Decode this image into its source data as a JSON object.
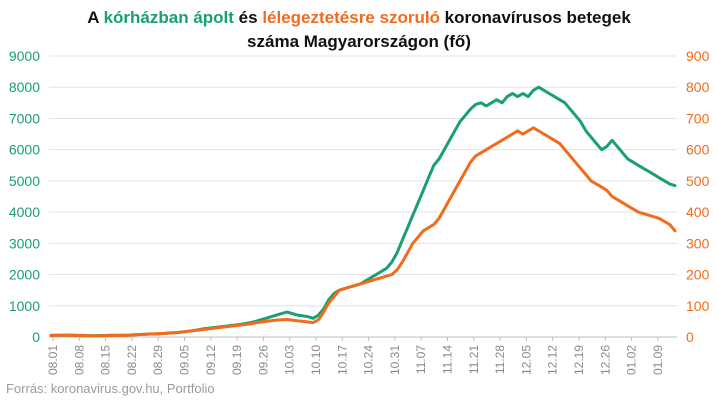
{
  "title": {
    "prefix": "A ",
    "hospitalized_term": "kórházban ápolt",
    "connector": " és ",
    "ventilated_term": "lélegeztetésre szoruló",
    "suffix": " koronavírusos betegek",
    "line2": "száma Magyarországon  (fő)"
  },
  "source": "Forrás: koronavirus.gov.hu, Portfolio",
  "colors": {
    "hospitalized": "#1a9e74",
    "ventilated": "#f26b1d",
    "axis_text_left": "#1a9e74",
    "axis_text_right": "#f26b1d",
    "grid": "#e3e3e3"
  },
  "chart_data": {
    "type": "line",
    "x_tick_labels": [
      "08.01",
      "08.08",
      "08.15",
      "08.22",
      "08.29",
      "09.05",
      "09.12",
      "09.19",
      "09.26",
      "10.03",
      "10.10",
      "10.17",
      "10.24",
      "10.31",
      "11.07",
      "11.14",
      "11.21",
      "11.28",
      "12.05",
      "12.12",
      "12.19",
      "12.26",
      "01.02",
      "01.09"
    ],
    "ylim_left": [
      0,
      9000
    ],
    "yticks_left": [
      "0",
      "1000",
      "2000",
      "3000",
      "4000",
      "5000",
      "6000",
      "7000",
      "8000",
      "9000"
    ],
    "ylim_right": [
      0,
      900
    ],
    "yticks_right": [
      "0",
      "100",
      "200",
      "300",
      "400",
      "500",
      "600",
      "700",
      "800",
      "900"
    ],
    "grid": true,
    "series": [
      {
        "axis": "left",
        "values": [
          50,
          55,
          55,
          60,
          55,
          50,
          45,
          40,
          40,
          45,
          45,
          50,
          50,
          55,
          55,
          60,
          70,
          80,
          90,
          95,
          100,
          110,
          120,
          130,
          140,
          160,
          180,
          200,
          230,
          260,
          280,
          300,
          320,
          340,
          360,
          380,
          400,
          430,
          460,
          500,
          550,
          600,
          650,
          700,
          750,
          800,
          750,
          700,
          680,
          650,
          600,
          700,
          900,
          1200,
          1400,
          1500,
          1550,
          1600,
          1650,
          1700,
          1800,
          1900,
          2000,
          2100,
          2200,
          2400,
          2700,
          3100,
          3500,
          3900,
          4300,
          4700,
          5100,
          5500,
          5700,
          6000,
          6300,
          6600,
          6900,
          7100,
          7300,
          7450,
          7500,
          7400,
          7500,
          7600,
          7500,
          7700,
          7800,
          7700,
          7800,
          7700,
          7900,
          8000,
          7900,
          7800,
          7700,
          7600,
          7500,
          7300,
          7100,
          6900,
          6600,
          6400,
          6200,
          6000,
          6100,
          6300,
          6100,
          5900,
          5700,
          5600,
          5500,
          5400,
          5300,
          5200,
          5100,
          5000,
          4900,
          4850
        ]
      },
      {
        "axis": "right",
        "values": [
          5,
          5,
          6,
          6,
          5,
          5,
          5,
          4,
          4,
          4,
          4,
          5,
          5,
          5,
          5,
          6,
          7,
          8,
          9,
          10,
          10,
          11,
          12,
          13,
          14,
          16,
          18,
          20,
          22,
          24,
          26,
          28,
          30,
          32,
          34,
          36,
          38,
          40,
          42,
          45,
          48,
          50,
          52,
          54,
          55,
          56,
          54,
          52,
          50,
          48,
          46,
          55,
          80,
          110,
          130,
          150,
          155,
          160,
          165,
          170,
          175,
          180,
          185,
          190,
          195,
          200,
          215,
          240,
          270,
          300,
          320,
          340,
          350,
          360,
          380,
          410,
          440,
          470,
          500,
          530,
          560,
          580,
          590,
          600,
          610,
          620,
          630,
          640,
          650,
          660,
          650,
          660,
          670,
          660,
          650,
          640,
          630,
          620,
          600,
          580,
          560,
          540,
          520,
          500,
          490,
          480,
          470,
          450,
          440,
          430,
          420,
          410,
          400,
          395,
          390,
          385,
          380,
          370,
          360,
          340
        ]
      }
    ]
  }
}
